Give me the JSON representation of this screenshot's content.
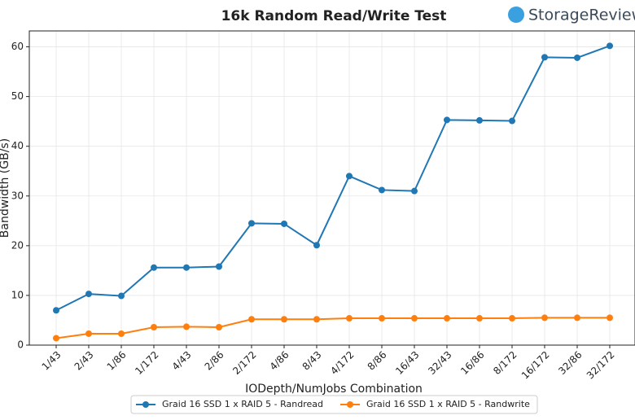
{
  "chart_data": {
    "type": "line",
    "title": "16k Random Read/Write Test",
    "logo": "StorageReview",
    "x_label": "IODepth/NumJobs Combination",
    "y_label": "Bandwidth (GB/s)",
    "categories": [
      "1/43",
      "2/43",
      "1/86",
      "1/172",
      "4/43",
      "2/86",
      "2/172",
      "4/86",
      "8/43",
      "4/172",
      "8/86",
      "16/43",
      "32/43",
      "16/86",
      "8/172",
      "16/172",
      "32/86",
      "32/172"
    ],
    "series": [
      {
        "name": "Graid 16 SSD 1 x RAID 5 - Randread",
        "color": "#1f77b4",
        "values": [
          7.0,
          10.3,
          9.9,
          15.6,
          15.6,
          15.8,
          24.5,
          24.4,
          20.1,
          34.0,
          31.2,
          31.0,
          45.3,
          45.2,
          45.1,
          57.9,
          57.8,
          60.2
        ]
      },
      {
        "name": "Graid 16 SSD 1 x RAID 5 - Randwrite",
        "color": "#ff7f0e",
        "values": [
          1.4,
          2.3,
          2.3,
          3.6,
          3.7,
          3.6,
          5.2,
          5.2,
          5.2,
          5.4,
          5.4,
          5.4,
          5.4,
          5.4,
          5.4,
          5.5,
          5.5,
          5.5
        ]
      }
    ],
    "ylim": [
      0,
      63.2
    ],
    "yticks": [
      0,
      10,
      20,
      30,
      40,
      50,
      60
    ],
    "grid": true,
    "legend": "bottom"
  }
}
